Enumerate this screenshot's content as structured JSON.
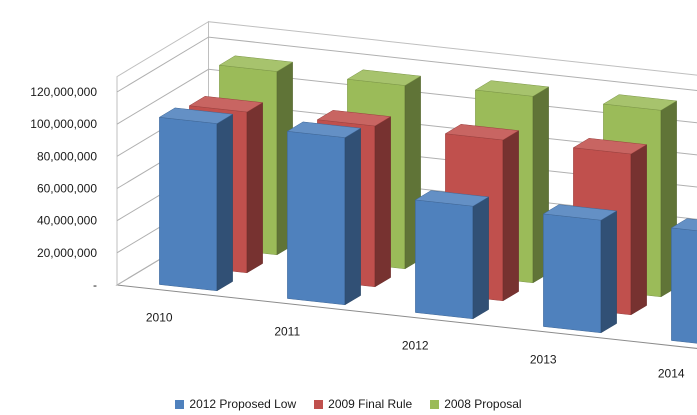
{
  "chart_data": {
    "type": "bar",
    "subtype": "3d-clustered-depth",
    "categories": [
      "2010",
      "2011",
      "2012",
      "2013",
      "2014"
    ],
    "series": [
      {
        "name": "2012 Proposed Low",
        "color": "#4F81BD",
        "values": [
          104000000,
          104000000,
          70000000,
          70000000,
          70000000
        ]
      },
      {
        "name": "2009 Final Rule",
        "color": "#C0504D",
        "values": [
          100000000,
          100000000,
          100000000,
          100000000,
          90000000
        ]
      },
      {
        "name": "2008 Proposal",
        "color": "#9BBB59",
        "values": [
          114000000,
          114000000,
          116000000,
          116000000,
          116000000
        ]
      }
    ],
    "ylim": [
      0,
      120000000
    ],
    "yticks": [
      "-",
      "20,000,000",
      "40,000,000",
      "60,000,000",
      "80,000,000",
      "100,000,000",
      "120,000,000"
    ],
    "grid": true,
    "legend": "bottom",
    "title": "",
    "xlabel": "",
    "ylabel": ""
  }
}
